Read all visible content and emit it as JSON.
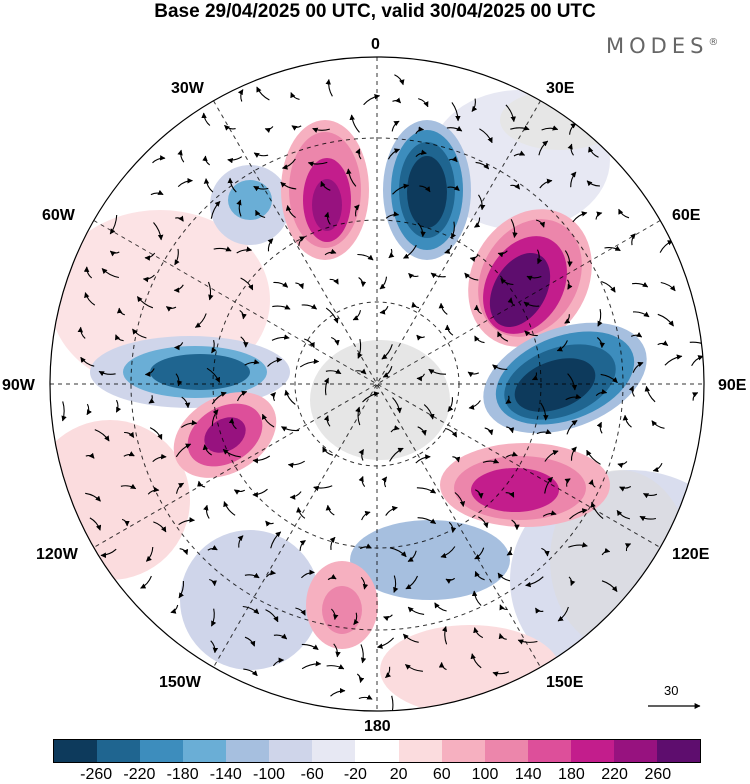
{
  "title": "Base 29/04/2025 00 UTC, valid 30/04/2025 00 UTC",
  "brand": "MODES",
  "brand_mark": "®",
  "longitude_labels": {
    "lon_0": "0",
    "lon_30e": "30E",
    "lon_60e": "60E",
    "lon_90e": "90E",
    "lon_120e": "120E",
    "lon_150e": "150E",
    "lon_180": "180",
    "lon_150w": "150W",
    "lon_120w": "120W",
    "lon_90w": "90W",
    "lon_60w": "60W",
    "lon_30w": "30W"
  },
  "reference_vector_label": "30",
  "colorbar": {
    "colors": [
      "#0d3a5c",
      "#1f6590",
      "#3d8dbd",
      "#6aaed6",
      "#a6bfdf",
      "#cfd5ea",
      "#e7e8f3",
      "#ffffff",
      "#fbdcde",
      "#f6b0c0",
      "#ec86ab",
      "#dd4f9a",
      "#c31d8c",
      "#97127f",
      "#5e0d6e"
    ],
    "tick_labels": [
      "-260",
      "-220",
      "-180",
      "-140",
      "-100",
      "-60",
      "-20",
      "20",
      "60",
      "100",
      "140",
      "180",
      "220",
      "260"
    ]
  }
}
